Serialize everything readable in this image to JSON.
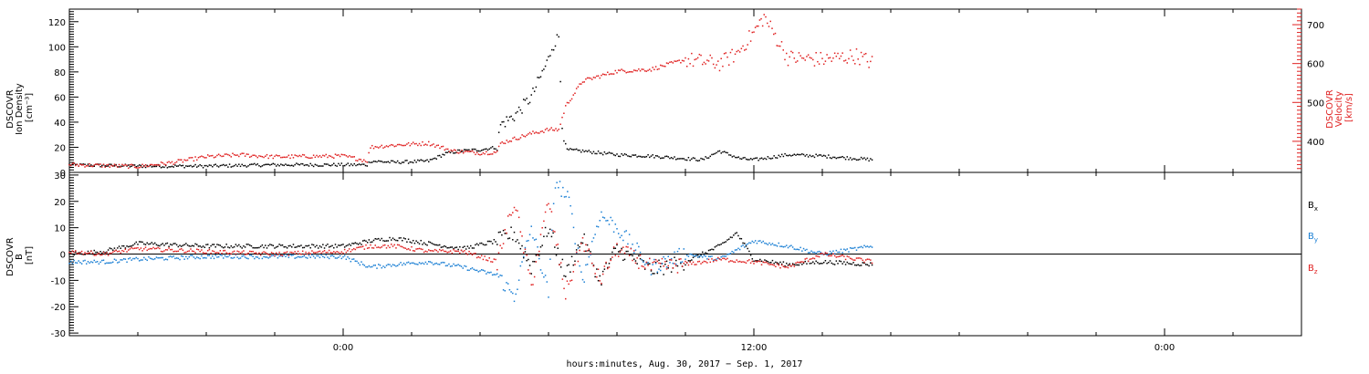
{
  "figure": {
    "xlabel": "hours:minutes, Aug. 30, 2017 − Sep.  1, 2017",
    "x_ticks": [
      "0:00",
      "12:00",
      "0:00"
    ],
    "colors": {
      "black": "#000000",
      "red": "#e02020",
      "blue": "#1a7fd4"
    }
  },
  "chart_data": [
    {
      "type": "scatter",
      "panel": "plasma",
      "left_axis": {
        "label": [
          "DSCOVR",
          "Ion Density",
          "[cm⁻³]"
        ],
        "ylim": [
          0,
          130
        ],
        "ticks": [
          0,
          20,
          40,
          60,
          80,
          100,
          120
        ]
      },
      "right_axis": {
        "label": [
          "DSCOVR",
          "Velocity",
          "[km/s]"
        ],
        "ylim": [
          320,
          740
        ],
        "ticks": [
          400,
          500,
          600,
          700
        ]
      },
      "x_unit": "hours since Aug. 30, 2017 00:00",
      "xlim": [
        -8,
        28
      ],
      "series": [
        {
          "color": "#000000",
          "axis": "left",
          "x": [
            -8,
            -6,
            -4,
            -2,
            0,
            0.7,
            0.8,
            1.5,
            2.5,
            3.0,
            3.4,
            4.0,
            4.5,
            4.6,
            5.0,
            5.5,
            6.0,
            6.1,
            6.3,
            6.4,
            6.5,
            7,
            8,
            9,
            10,
            10.5,
            11,
            11.6,
            12,
            13,
            14,
            15.5
          ],
          "y": [
            6,
            5,
            5,
            6,
            6,
            6,
            9,
            8,
            9,
            15,
            17,
            18,
            20,
            38,
            45,
            60,
            90,
            100,
            108,
            40,
            18,
            17,
            14,
            13,
            11,
            10,
            17,
            11,
            10,
            14,
            13,
            10
          ]
        },
        {
          "color": "#e02020",
          "axis": "right",
          "x": [
            -8,
            -6,
            -5,
            -4,
            -3,
            -2,
            0,
            0.7,
            0.8,
            1.5,
            2.5,
            3.2,
            4.0,
            4.5,
            4.6,
            5.5,
            6.0,
            6.3,
            6.5,
            7,
            8,
            9,
            10,
            10.5,
            11,
            11.5,
            12,
            12.3,
            13,
            14,
            15,
            15.5
          ],
          "y": [
            340,
            335,
            345,
            360,
            365,
            360,
            362,
            350,
            385,
            390,
            395,
            375,
            370,
            372,
            395,
            420,
            430,
            430,
            490,
            555,
            580,
            585,
            610,
            605,
            600,
            625,
            680,
            720,
            615,
            610,
            620,
            600
          ]
        }
      ]
    },
    {
      "type": "scatter",
      "panel": "magnetic field",
      "left_axis": {
        "label": [
          "DSCOVR",
          "B",
          "[nT]"
        ],
        "ylim": [
          -31,
          31
        ],
        "ticks": [
          -30,
          -20,
          -10,
          0,
          10,
          20,
          30
        ]
      },
      "x_unit": "hours since Aug. 30, 2017 00:00",
      "xlim": [
        -8,
        28
      ],
      "legend": [
        "Bx",
        "By",
        "Bz"
      ],
      "series": [
        {
          "name": "Bx",
          "color": "#000000",
          "x": [
            -8,
            -7,
            -6,
            -4,
            -2,
            0,
            0.8,
            1.5,
            2.5,
            3.5,
            4.5,
            5,
            5.5,
            6,
            6.5,
            7,
            7.5,
            8,
            9,
            10,
            11,
            11.5,
            12,
            13,
            14,
            15.5
          ],
          "y": [
            0,
            1,
            4,
            3,
            3,
            3,
            5,
            6,
            4,
            2,
            5,
            8,
            -5,
            10,
            -8,
            6,
            -10,
            2,
            -6,
            -3,
            3,
            8,
            -2,
            -4,
            -3,
            -4
          ]
        },
        {
          "name": "By",
          "color": "#1a7fd4",
          "x": [
            -8,
            -7,
            -6,
            -4,
            -2,
            0,
            0.8,
            1.5,
            2.5,
            3.5,
            4.5,
            5,
            5.5,
            6,
            6.2,
            6.6,
            7,
            7.5,
            8,
            9,
            10,
            11,
            12,
            13,
            14,
            15.5
          ],
          "y": [
            -3,
            -3,
            -2,
            -1,
            -1,
            -1,
            -5,
            -4,
            -3,
            -5,
            -8,
            -16,
            10,
            -15,
            28,
            20,
            -10,
            15,
            10,
            -5,
            0,
            -2,
            5,
            3,
            0,
            3
          ]
        },
        {
          "name": "Bz",
          "color": "#e02020",
          "x": [
            -8,
            -7,
            -6,
            -4,
            -2,
            0,
            0.8,
            1.5,
            2.5,
            3.5,
            4.5,
            5,
            5.5,
            6,
            6.5,
            7,
            7.5,
            8,
            9,
            10,
            11,
            12,
            13,
            14,
            15.5
          ],
          "y": [
            1,
            0,
            2,
            1,
            0,
            1,
            3,
            3,
            1,
            1,
            -3,
            20,
            -12,
            20,
            -15,
            5,
            -10,
            2,
            -5,
            -4,
            -2,
            -3,
            -5,
            0,
            -3
          ]
        }
      ]
    }
  ]
}
